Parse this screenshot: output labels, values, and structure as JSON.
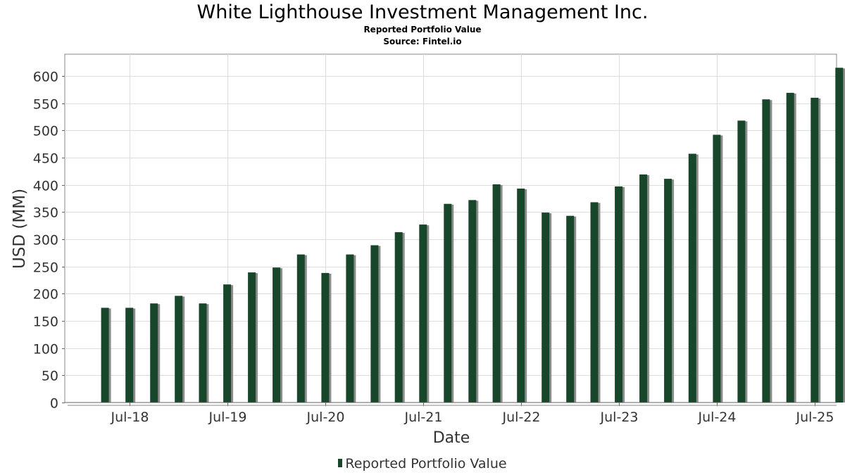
{
  "header": {
    "title": "White Lighthouse Investment Management Inc.",
    "subtitle": "Reported Portfolio Value",
    "source": "Source: Fintel.io"
  },
  "legend": {
    "label": "Reported Portfolio Value"
  },
  "colors": {
    "bar": "#17462a",
    "bar_shadow": "#8c8c8c",
    "grid": "#dddddd",
    "axis": "#888888"
  },
  "chart_data": {
    "type": "bar",
    "title": "White Lighthouse Investment Management Inc.",
    "subtitle": "Reported Portfolio Value",
    "xlabel": "Date",
    "ylabel": "USD (MM)",
    "ylim": [
      0,
      640
    ],
    "yticks": [
      0,
      50,
      100,
      150,
      200,
      250,
      300,
      350,
      400,
      450,
      500,
      550,
      600
    ],
    "xlim": [
      "2017-11-01",
      "2025-09-20"
    ],
    "xticks": [
      {
        "date": "2018-07-01",
        "label": "Jul-18"
      },
      {
        "date": "2019-07-01",
        "label": "Jul-19"
      },
      {
        "date": "2020-07-01",
        "label": "Jul-20"
      },
      {
        "date": "2021-07-01",
        "label": "Jul-21"
      },
      {
        "date": "2022-07-01",
        "label": "Jul-22"
      },
      {
        "date": "2023-07-01",
        "label": "Jul-23"
      },
      {
        "date": "2024-07-01",
        "label": "Jul-24"
      },
      {
        "date": "2025-07-01",
        "label": "Jul-25"
      }
    ],
    "grid": true,
    "legend_position": "bottom",
    "series": [
      {
        "name": "Reported Portfolio Value",
        "points": [
          {
            "date": "2018-03-31",
            "value": 174
          },
          {
            "date": "2018-06-30",
            "value": 174
          },
          {
            "date": "2018-09-30",
            "value": 182
          },
          {
            "date": "2018-12-31",
            "value": 196
          },
          {
            "date": "2019-03-31",
            "value": 182
          },
          {
            "date": "2019-06-30",
            "value": 217
          },
          {
            "date": "2019-09-30",
            "value": 239
          },
          {
            "date": "2019-12-31",
            "value": 248
          },
          {
            "date": "2020-03-31",
            "value": 272
          },
          {
            "date": "2020-06-30",
            "value": 238
          },
          {
            "date": "2020-09-30",
            "value": 272
          },
          {
            "date": "2020-12-31",
            "value": 289
          },
          {
            "date": "2021-03-31",
            "value": 313
          },
          {
            "date": "2021-06-30",
            "value": 327
          },
          {
            "date": "2021-09-30",
            "value": 365
          },
          {
            "date": "2021-12-31",
            "value": 372
          },
          {
            "date": "2022-03-31",
            "value": 401
          },
          {
            "date": "2022-06-30",
            "value": 393
          },
          {
            "date": "2022-09-30",
            "value": 349
          },
          {
            "date": "2022-12-31",
            "value": 343
          },
          {
            "date": "2023-03-31",
            "value": 368
          },
          {
            "date": "2023-06-30",
            "value": 397
          },
          {
            "date": "2023-09-30",
            "value": 419
          },
          {
            "date": "2023-12-31",
            "value": 411
          },
          {
            "date": "2024-03-31",
            "value": 457
          },
          {
            "date": "2024-06-30",
            "value": 492
          },
          {
            "date": "2024-09-30",
            "value": 518
          },
          {
            "date": "2024-12-31",
            "value": 557
          },
          {
            "date": "2025-03-31",
            "value": 569
          },
          {
            "date": "2025-06-30",
            "value": 560
          },
          {
            "date": "2025-09-30",
            "value": 615
          }
        ]
      }
    ]
  }
}
